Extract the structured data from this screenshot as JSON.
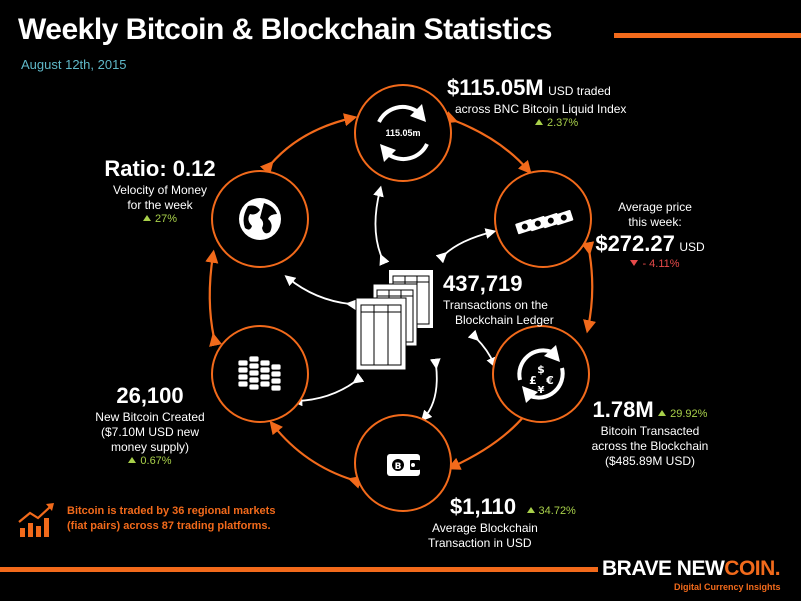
{
  "header": {
    "title": "Weekly Bitcoin & Blockchain Statistics",
    "date": "August 12th, 2015"
  },
  "colors": {
    "accent": "#f26a1b",
    "up": "#a8d04a",
    "down": "#e84a4a",
    "date": "#5fb8c8"
  },
  "nodes": {
    "traded": {
      "icon": "circular-arrows-icon",
      "icon_label": "115.05m"
    },
    "price": {
      "icon": "banknotes-icon"
    },
    "transacted": {
      "icon": "currency-exchange-icon"
    },
    "avg_tx": {
      "icon": "wallet-icon"
    },
    "created": {
      "icon": "coin-stacks-icon"
    },
    "ratio": {
      "icon": "globe-icon"
    },
    "ledger": {
      "icon": "ledger-pages-icon"
    }
  },
  "stats": {
    "traded": {
      "value": "$115.05M",
      "unit": "USD traded",
      "desc": "across BNC Bitcoin Liquid Index",
      "change": "2.37%"
    },
    "price": {
      "desc1": "Average price",
      "desc2": "this week:",
      "value": "$272.27",
      "unit": "USD",
      "change": "- 4.11%"
    },
    "ledger": {
      "value": "437,719",
      "desc1": "Transactions on the",
      "desc2": "Blockchain Ledger"
    },
    "transacted": {
      "value": "1.78M",
      "change": "29.92%",
      "desc1": "Bitcoin Transacted",
      "desc2": "across the Blockchain",
      "desc3": "($485.89M USD)"
    },
    "avg_tx": {
      "value": "$1,110",
      "change": "34.72%",
      "desc1": "Average Blockchain",
      "desc2": "Transaction in USD"
    },
    "created": {
      "value": "26,100",
      "desc1": "New Bitcoin Created",
      "desc2": "($7.10M USD new",
      "desc3": "money supply)",
      "change": "0.67%"
    },
    "ratio": {
      "value": "Ratio: 0.12",
      "desc1": "Velocity of Money",
      "desc2": "for the week",
      "change": "27%"
    }
  },
  "footer": {
    "note": "Bitcoin is traded by 36 regional markets (fiat pairs) across 87 trading platforms.",
    "icon": "growth-chart-icon"
  },
  "brand": {
    "name_a": "BRAVE NEW",
    "name_b": "COIN.",
    "tagline": "Digital Currency Insights"
  }
}
